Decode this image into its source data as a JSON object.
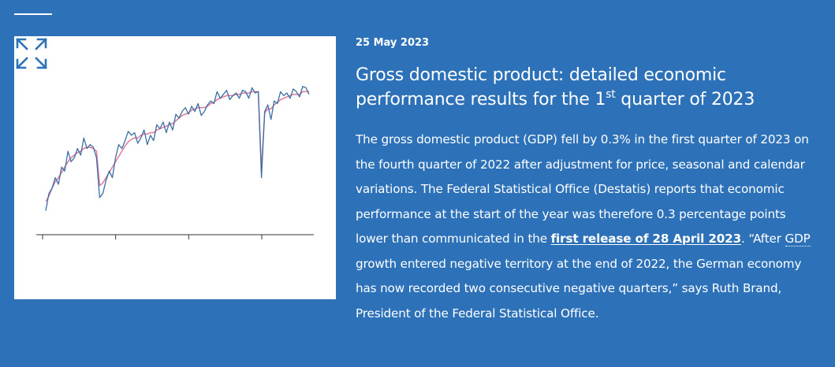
{
  "article": {
    "date": "25 May 2023",
    "title_before": "Gross domestic product: detailed economic performance results for the 1",
    "title_sup": "st",
    "title_after": " quarter of 2023",
    "body_part1": "The gross domestic product (GDP) fell by 0.3% in the first quarter of 2023 on the fourth quarter of 2022 after adjustment for price, seasonal and calendar variations. The Federal Statistical Office (Destatis) reports that economic performance at the start of the year was therefore 0.3 percentage points lower than communicated in the ",
    "link_text": "first release of 28 April 2023",
    "body_part2": ". “After ",
    "abbr_text": "GDP",
    "body_part3": " growth entered negative territory at the end of 2022, the German economy has now recorded two consecutive negative quarters,” says Ruth Brand, President of the Federal Statistical Office."
  },
  "icons": {
    "expand": "expand-arrows-icon"
  },
  "colors": {
    "background": "#2d72b8",
    "series_raw": "#3a6ea5",
    "series_adjusted": "#e07a9a"
  },
  "chart_data": {
    "type": "line",
    "ylim": [
      0,
      100
    ],
    "x_ticks": 4,
    "series": [
      {
        "values": [
          5,
          18,
          22,
          30,
          25,
          38,
          35,
          50,
          42,
          45,
          52,
          47,
          60,
          52,
          55,
          53,
          45,
          15,
          18,
          28,
          35,
          30,
          45,
          55,
          52,
          58,
          65,
          62,
          64,
          56,
          60,
          66,
          55,
          62,
          58,
          70,
          67,
          72,
          64,
          72,
          66,
          78,
          75,
          80,
          83,
          78,
          84,
          80,
          86,
          77,
          80,
          85,
          88,
          86,
          95,
          90,
          93,
          96,
          89,
          92,
          94,
          90,
          96,
          95,
          90,
          98,
          94,
          95,
          30,
          80,
          85,
          74,
          88,
          86,
          95,
          92,
          94,
          90,
          97,
          95,
          91,
          99,
          98,
          93
        ]
      },
      {
        "values": [
          12,
          16,
          22,
          27,
          30,
          34,
          38,
          42,
          45,
          47,
          49,
          50,
          52,
          53,
          53,
          52,
          50,
          24,
          26,
          30,
          34,
          38,
          42,
          46,
          50,
          54,
          57,
          59,
          60,
          60,
          62,
          63,
          63,
          64,
          64,
          66,
          67,
          68,
          69,
          70,
          71,
          73,
          75,
          77,
          78,
          79,
          81,
          82,
          83,
          83,
          83,
          84,
          86,
          87,
          89,
          90,
          91,
          92,
          92,
          92,
          93,
          93,
          94,
          94,
          94,
          95,
          95,
          95,
          36,
          79,
          82,
          82,
          85,
          87,
          89,
          90,
          91,
          92,
          93,
          93,
          93,
          95,
          95,
          95
        ]
      }
    ]
  }
}
